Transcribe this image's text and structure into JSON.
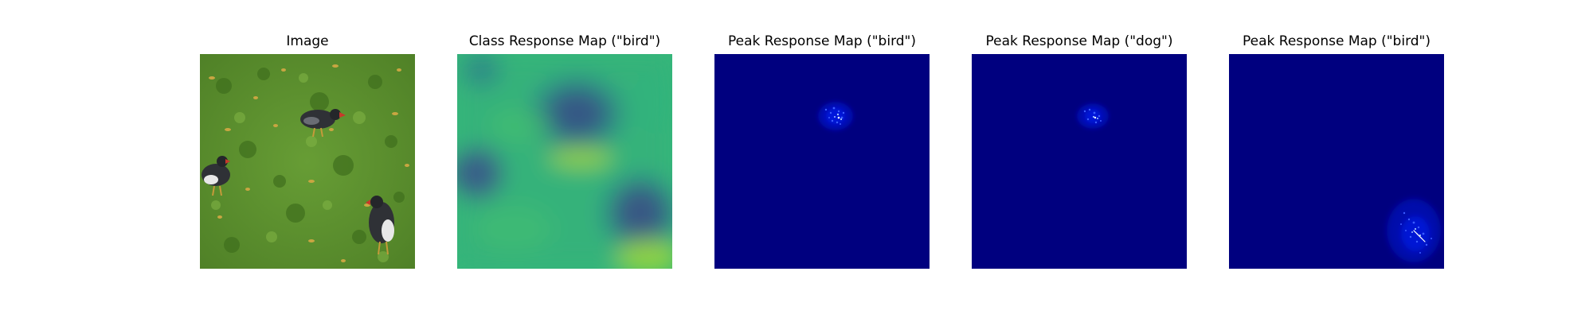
{
  "figure": {
    "panels": [
      {
        "title": "Image",
        "kind": "photo"
      },
      {
        "title": "Class Response Map (\"bird\")",
        "kind": "heatmap"
      },
      {
        "title": "Peak Response Map (\"bird\")",
        "kind": "peak"
      },
      {
        "title": "Peak Response Map (\"dog\")",
        "kind": "peak"
      },
      {
        "title": "Peak Response Map (\"bird\")",
        "kind": "peak"
      }
    ]
  },
  "colors": {
    "grass": "#5a8f2e",
    "bird_dark": "#2f3136",
    "bird_beak": "#c8382a",
    "viridis_mid": "#35b779",
    "viridis_low": "#472d7b",
    "viridis_high": "#b5de2b",
    "jet_background": "#00007f",
    "jet_peak": "#2f3fff"
  }
}
